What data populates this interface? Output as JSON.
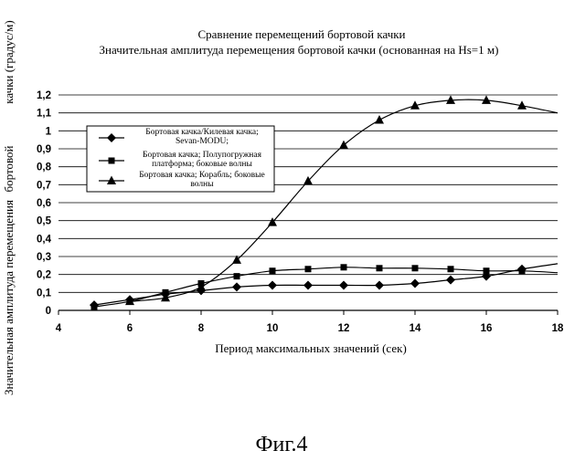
{
  "chart_data": {
    "type": "line",
    "title": "Сравнение перемещений бортовой качки",
    "subtitle": "Значительная амплитуда перемещения бортовой качки (основанная на Hs=1 м)",
    "xlabel": "Период максимальных значений (сек)",
    "ylabel": "Значительная амплитуда перемещения бортовой качки (градус/м)",
    "xlim": [
      4,
      18
    ],
    "ylim": [
      0,
      1.2
    ],
    "x_ticks": [
      "4",
      "6",
      "8",
      "10",
      "12",
      "14",
      "16",
      "18"
    ],
    "y_ticks": [
      "0",
      "0,1",
      "0,2",
      "0,3",
      "0,4",
      "0,5",
      "0,6",
      "0,7",
      "0,8",
      "0,9",
      "1",
      "1,1",
      "1,2"
    ],
    "grid": "horizontal",
    "legend_position": "upper-left",
    "series": [
      {
        "name": "Бортовая качка/Килевая качка; Sevan-MODU;",
        "marker": "diamond",
        "x": [
          5,
          6,
          7,
          8,
          9,
          10,
          11,
          12,
          13,
          14,
          15,
          16,
          17
        ],
        "y": [
          0.03,
          0.06,
          0.09,
          0.11,
          0.13,
          0.14,
          0.14,
          0.14,
          0.14,
          0.15,
          0.17,
          0.19,
          0.23
        ],
        "curve_x": [
          18
        ],
        "curve_y": [
          0.26
        ]
      },
      {
        "name": "Бортовая качка; Полупогружная платформа; боковые волны",
        "marker": "square",
        "x": [
          5,
          6,
          7,
          8,
          9,
          10,
          11,
          12,
          13,
          14,
          15,
          16,
          17
        ],
        "y": [
          0.02,
          0.05,
          0.1,
          0.15,
          0.19,
          0.22,
          0.23,
          0.24,
          0.235,
          0.235,
          0.23,
          0.22,
          0.22
        ],
        "curve_x": [
          18
        ],
        "curve_y": [
          0.21
        ]
      },
      {
        "name": "Бортовая качка; Корабль; боковые волны",
        "marker": "triangle",
        "x": [
          6,
          7,
          8,
          9,
          10,
          11,
          12,
          13,
          14,
          15,
          16,
          17
        ],
        "y": [
          0.05,
          0.07,
          0.13,
          0.28,
          0.49,
          0.72,
          0.92,
          1.06,
          1.14,
          1.17,
          1.17,
          1.14
        ],
        "curve_x": [
          18
        ],
        "curve_y": [
          1.1
        ]
      }
    ]
  },
  "legend_lines": [
    [
      "Бортовая качка/Килевая качка;",
      "Sevan-MODU;"
    ],
    [
      "Бортовая качка; Полупогружная",
      "платформа; боковые волны"
    ],
    [
      "Бортовая качка; Корабль; боковые",
      "волны"
    ]
  ],
  "ylabel_parts": {
    "first": "бортовой",
    "second": "качки (градус/м)",
    "lower": "Значительная амплитуда перемещения"
  },
  "caption": "Фиг.4"
}
